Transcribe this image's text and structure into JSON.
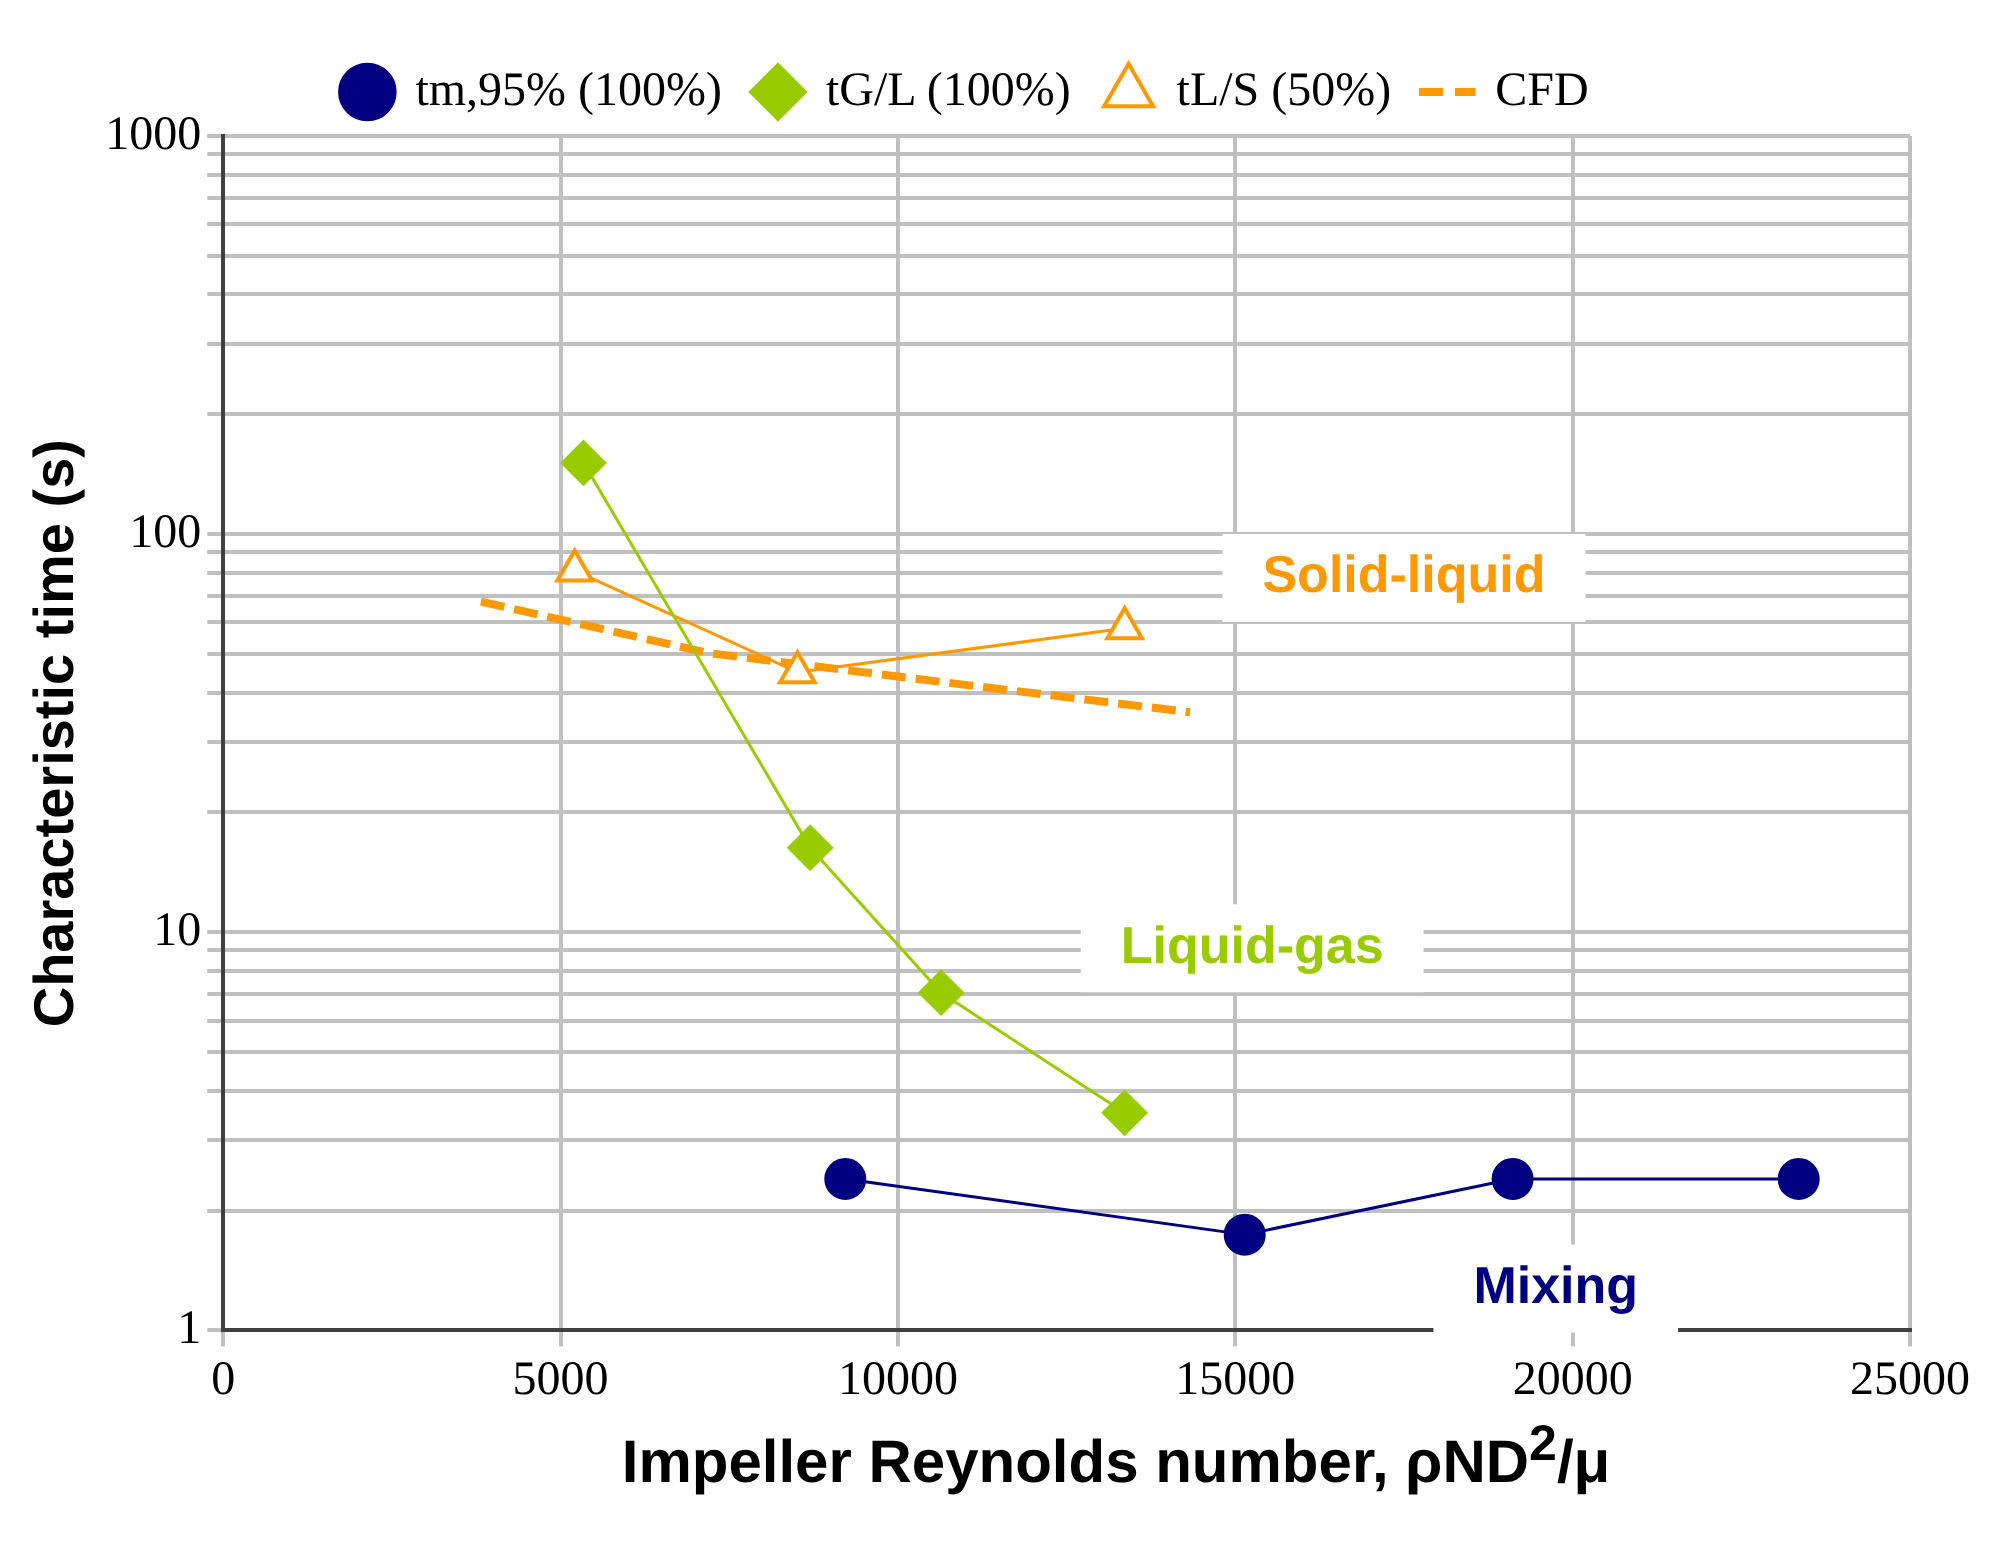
{
  "chart_data": {
    "type": "line",
    "xlabel": "Impeller Reynolds number, ρND$^{2}$/μ",
    "ylabel": "Characteristic time (s)",
    "log": "y",
    "grid": true,
    "legend": "top",
    "xlim": [
      0,
      25000
    ],
    "xticks": [
      0,
      5000,
      10000,
      15000,
      20000,
      25000
    ],
    "ylim": [
      1,
      1000
    ],
    "yticks": [
      1,
      {
        "value": 2,
        "label": null
      },
      {
        "value": 3,
        "label": null
      },
      {
        "value": 4,
        "label": null
      },
      {
        "value": 5,
        "label": null
      },
      {
        "value": 6,
        "label": null
      },
      {
        "value": 7,
        "label": null
      },
      {
        "value": 8,
        "label": null
      },
      {
        "value": 9,
        "label": null
      },
      10,
      {
        "value": 20,
        "label": null
      },
      {
        "value": 30,
        "label": null
      },
      {
        "value": 40,
        "label": null
      },
      {
        "value": 50,
        "label": null
      },
      {
        "value": 60,
        "label": null
      },
      {
        "value": 70,
        "label": null
      },
      {
        "value": 80,
        "label": null
      },
      {
        "value": 90,
        "label": null
      },
      100,
      {
        "value": 200,
        "label": null
      },
      {
        "value": 300,
        "label": null
      },
      {
        "value": 400,
        "label": null
      },
      {
        "value": 500,
        "label": null
      },
      {
        "value": 600,
        "label": null
      },
      {
        "value": 700,
        "label": null
      },
      {
        "value": 800,
        "label": null
      },
      {
        "value": 900,
        "label": null
      },
      1000
    ],
    "series": [
      {
        "name": "tm,95% (100%)",
        "color": "#000080",
        "marker": "circle",
        "line_style": "solid",
        "x": [
          9220,
          15140,
          19110,
          23350
        ],
        "values": [
          2.4,
          1.74,
          2.4,
          2.4
        ]
      },
      {
        "name": "tG/L (100%)",
        "color": "#99cc00",
        "marker": "diamond",
        "line_style": "solid",
        "x": [
          5340,
          8700,
          10640,
          13360
        ],
        "values": [
          151,
          16.3,
          7.05,
          3.52
        ]
      },
      {
        "name": "tL/S (50%)",
        "color": "#ff9900",
        "marker": "triangle",
        "line_style": "solid",
        "x": [
          5210,
          8510,
          13360
        ],
        "values": [
          81,
          45,
          58
        ]
      },
      {
        "name": "CFD",
        "color": "#ff9900",
        "marker": "none",
        "line_style": "dashed",
        "x": [
          3820,
          7180,
          11060,
          14330
        ],
        "values": [
          67.7,
          50.3,
          41.7,
          35.7
        ]
      }
    ],
    "annotations": [
      "Mixing",
      "Liquid-gas",
      "Solid-liquid"
    ]
  }
}
